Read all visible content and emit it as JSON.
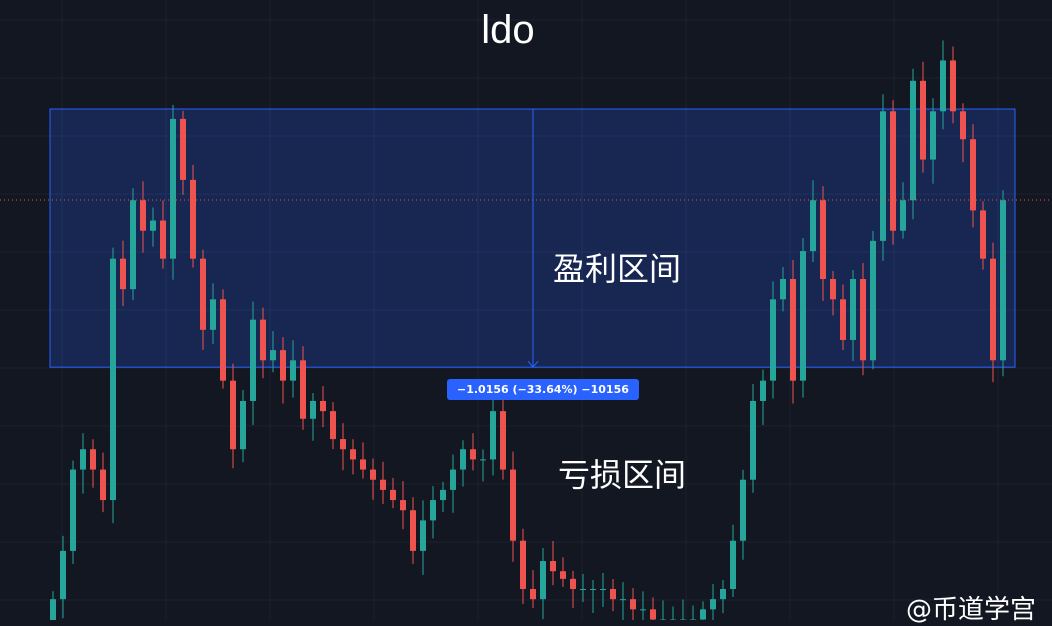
{
  "chart_data": {
    "type": "candlestick",
    "title": "ldo",
    "xlabel": "",
    "ylabel": "",
    "ylim": [
      1.008,
      3.448
    ],
    "grid": true,
    "first_open": 0.95,
    "closes": [
      1.09,
      1.28,
      1.6,
      1.68,
      1.6,
      1.48,
      2.43,
      2.31,
      2.66,
      2.54,
      2.58,
      2.43,
      2.98,
      2.74,
      2.43,
      2.15,
      2.27,
      1.95,
      1.68,
      1.87,
      2.19,
      2.03,
      2.07,
      1.95,
      2.03,
      1.8,
      1.87,
      1.83,
      1.72,
      1.68,
      1.64,
      1.6,
      1.56,
      1.52,
      1.48,
      1.44,
      1.28,
      1.4,
      1.48,
      1.52,
      1.6,
      1.68,
      1.64,
      1.64,
      1.83,
      1.6,
      1.32,
      1.13,
      1.09,
      1.24,
      1.2,
      1.17,
      1.13,
      1.13,
      1.13,
      1.13,
      1.09,
      1.09,
      1.05,
      1.05,
      1.01,
      1.01,
      1.01,
      1.01,
      1.01,
      1.05,
      1.09,
      1.13,
      1.32,
      1.56,
      1.87,
      1.95,
      2.27,
      2.35,
      1.95,
      2.46,
      2.66,
      2.35,
      2.27,
      2.11,
      2.35,
      2.03,
      2.5,
      3.01,
      2.54,
      2.66,
      3.13,
      2.82,
      3.01,
      3.21,
      3.01,
      2.9,
      2.62,
      2.43,
      2.03,
      2.66
    ],
    "current_price_line": 2.661,
    "range_box": {
      "top": 3.019,
      "bottom": 2.003
    },
    "measure_label": "−1.0156 (−33.64%) −10156",
    "zones": {
      "profit": "盈利区间",
      "loss": "亏损区间"
    },
    "colors": {
      "up": "#26a69a",
      "down": "#ef5350",
      "box": "#2962ff",
      "background": "#131722"
    }
  },
  "watermark": "@币道学宫"
}
